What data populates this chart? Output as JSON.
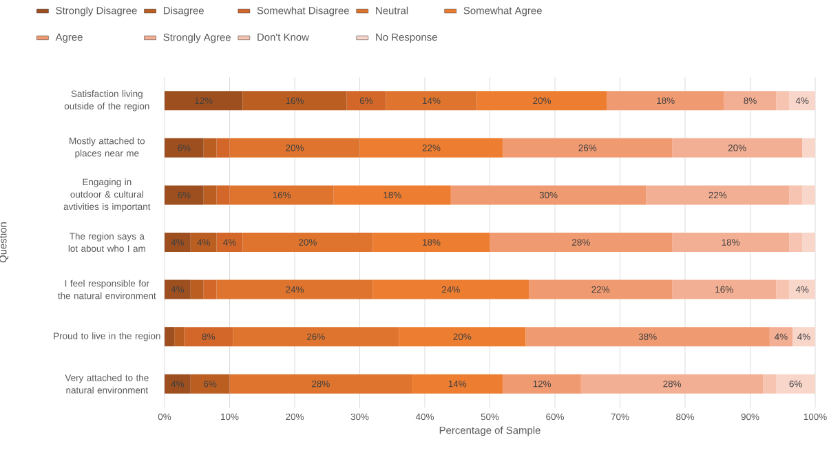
{
  "chart_data": {
    "type": "bar",
    "orientation": "horizontal",
    "stacked": true,
    "xlabel": "Percentage of Sample",
    "ylabel": "Question",
    "categories": [
      "Satisfaction living outside of the region",
      "Mostly attached to places near me",
      "Engaging in outdoor & cultural avtivities is important",
      "The region says a lot about who I am",
      "I feel responsible for the natural environment",
      "Proud to live in the region",
      "Very attached to the natural environment"
    ],
    "series": [
      {
        "name": "Strongly Disagree",
        "color": "#9e4f1f",
        "values": [
          12,
          6,
          6,
          4,
          4,
          1.5,
          4
        ],
        "value_labels": [
          "12%",
          "6%",
          "6%",
          "4%",
          "4%",
          null,
          "4%"
        ]
      },
      {
        "name": "Disagree",
        "color": "#bb5e22",
        "values": [
          16,
          2,
          2,
          4,
          2,
          1.5,
          6
        ],
        "value_labels": [
          "16%",
          null,
          null,
          "4%",
          null,
          null,
          "6%"
        ]
      },
      {
        "name": "Somewhat Disagree",
        "color": "#d26729",
        "values": [
          6,
          2,
          2,
          4,
          2,
          7.5,
          0
        ],
        "value_labels": [
          "6%",
          null,
          null,
          "4%",
          null,
          "8%",
          null
        ]
      },
      {
        "name": "Neutral",
        "color": "#de742e",
        "values": [
          14,
          20,
          16,
          20,
          24,
          25.5,
          28
        ],
        "value_labels": [
          "14%",
          "20%",
          "16%",
          "20%",
          "24%",
          "26%",
          "28%"
        ]
      },
      {
        "name": "Somewhat Agree",
        "color": "#ed7d31",
        "values": [
          20,
          22,
          18,
          18,
          24,
          19.5,
          14
        ],
        "value_labels": [
          "20%",
          "22%",
          "18%",
          "18%",
          "24%",
          "20%",
          "14%"
        ]
      },
      {
        "name": "Agree",
        "color": "#f09a71",
        "values": [
          18,
          26,
          30,
          28,
          22,
          37.5,
          12
        ],
        "value_labels": [
          "18%",
          "26%",
          "30%",
          "28%",
          "22%",
          "38%",
          "12%"
        ]
      },
      {
        "name": "Strongly Agree",
        "color": "#f3af93",
        "values": [
          8,
          20,
          22,
          18,
          16,
          3.5,
          28
        ],
        "value_labels": [
          "8%",
          "20%",
          "22%",
          "18%",
          "16%",
          "4%",
          "28%"
        ]
      },
      {
        "name": "Don't Know",
        "color": "#f6c4b0",
        "values": [
          2,
          0,
          2,
          2,
          2,
          0,
          2
        ],
        "value_labels": [
          null,
          null,
          null,
          null,
          null,
          null,
          null
        ]
      },
      {
        "name": "No Response",
        "color": "#f8d6ca",
        "values": [
          4,
          2,
          2,
          2,
          4,
          3.5,
          6
        ],
        "value_labels": [
          "4%",
          null,
          null,
          null,
          "4%",
          "4%",
          "6%"
        ]
      }
    ],
    "xlim": [
      0,
      100
    ],
    "xticks": [
      {
        "value": 0,
        "label": "0%"
      },
      {
        "value": 10,
        "label": "10%"
      },
      {
        "value": 20,
        "label": "20%"
      },
      {
        "value": 30,
        "label": "30%"
      },
      {
        "value": 40,
        "label": "40%"
      },
      {
        "value": 50,
        "label": "50%"
      },
      {
        "value": 60,
        "label": "60%"
      },
      {
        "value": 70,
        "label": "70%"
      },
      {
        "value": 80,
        "label": "80%"
      },
      {
        "value": 90,
        "label": "90%"
      },
      {
        "value": 100,
        "label": "100%"
      }
    ],
    "grid": "x",
    "legend": "top"
  }
}
